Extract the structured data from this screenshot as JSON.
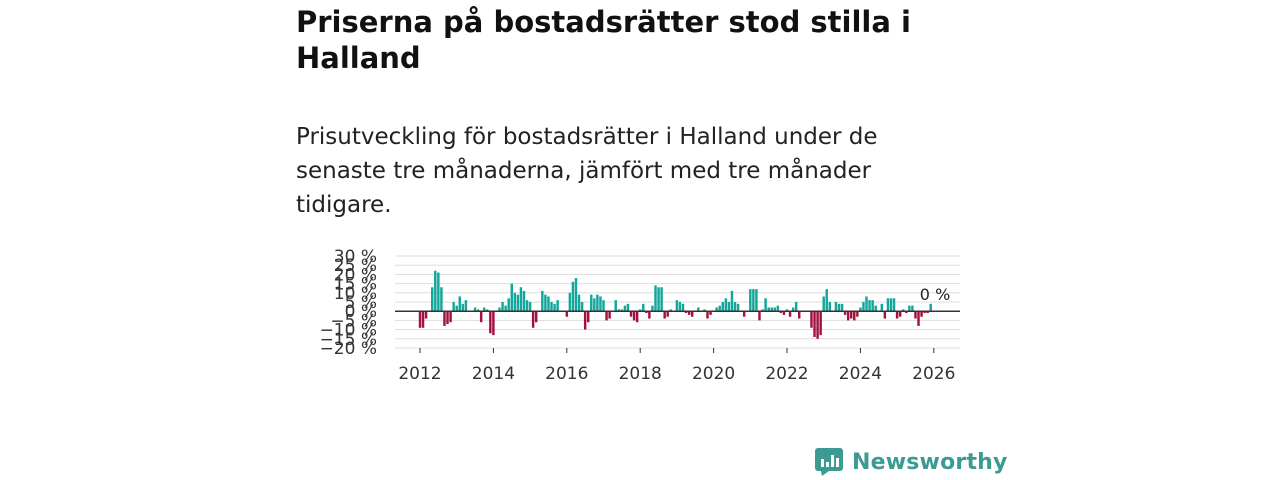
{
  "header": {
    "title": "Priserna på bostadsrätter stod stilla i Halland",
    "subtitle": "Prisutveckling för bostadsrätter i Halland under de senaste tre månaderna, jämfört med tre månader tidigare."
  },
  "colors": {
    "positive": "#13a69a",
    "negative": "#a3123f",
    "zero_line": "#333333",
    "grid": "#dddddd",
    "brand": "#3b9a94"
  },
  "chart_data": {
    "type": "bar",
    "title": "Priserna på bostadsrätter stod stilla i Halland",
    "xlabel": "",
    "ylabel": "",
    "ylim": [
      -20,
      30
    ],
    "yticks": [
      -20,
      -15,
      -10,
      -5,
      0,
      5,
      10,
      15,
      20,
      25,
      30
    ],
    "ytick_labels": [
      "−20 %",
      "−15 %",
      "−10 %",
      "−5 %",
      "0 %",
      "5 %",
      "10 %",
      "15 %",
      "20 %",
      "25 %",
      "30 %"
    ],
    "xticks": [
      2012,
      2014,
      2016,
      2018,
      2020,
      2022,
      2024,
      2026
    ],
    "xtick_labels": [
      "2012",
      "2014",
      "2016",
      "2018",
      "2020",
      "2022",
      "2024",
      "2026"
    ],
    "grid": true,
    "start": 2012,
    "step": 0.0833333,
    "values": [
      -9,
      -9,
      -4,
      0,
      13,
      22,
      21,
      13,
      -8,
      -7,
      -6,
      5,
      3,
      8,
      4,
      6,
      0,
      0,
      2,
      1,
      -6,
      2,
      1,
      -12,
      -13,
      0,
      2,
      5,
      3,
      7,
      15,
      10,
      9,
      13,
      11,
      6,
      5,
      -9,
      -6,
      0,
      11,
      9,
      8,
      5,
      4,
      6,
      0,
      0,
      -3,
      10,
      16,
      18,
      9,
      5,
      -10,
      -6,
      9,
      7,
      9,
      8,
      6,
      -5,
      -4,
      0,
      6,
      1,
      1,
      3,
      4,
      -3,
      -5,
      -6,
      1,
      4,
      -1,
      -4,
      3,
      14,
      13,
      13,
      -4,
      -3,
      1,
      0,
      6,
      5,
      4,
      -1,
      -2,
      -3,
      0,
      2,
      0,
      1,
      -4,
      -2,
      0,
      2,
      3,
      5,
      7,
      5,
      11,
      5,
      4,
      0,
      -3,
      0,
      12,
      12,
      12,
      -5,
      1,
      7,
      2,
      2,
      2,
      3,
      -1,
      -2,
      1,
      -3,
      2,
      5,
      -4,
      0,
      0,
      0,
      -9,
      -14,
      -15,
      -13,
      8,
      12,
      5,
      0,
      5,
      4,
      4,
      -2,
      -5,
      -4,
      -5,
      -3,
      2,
      5,
      8,
      6,
      6,
      3,
      0,
      4,
      -4,
      7,
      7,
      7,
      -4,
      -3,
      1,
      -1,
      3,
      3,
      -4,
      -8,
      -3,
      -1,
      -1,
      4,
      0
    ],
    "annotations": [
      {
        "text": "0 %",
        "target": "last"
      }
    ]
  },
  "brand": {
    "name": "Newsworthy",
    "icon": "bar-chart-logo-icon"
  }
}
